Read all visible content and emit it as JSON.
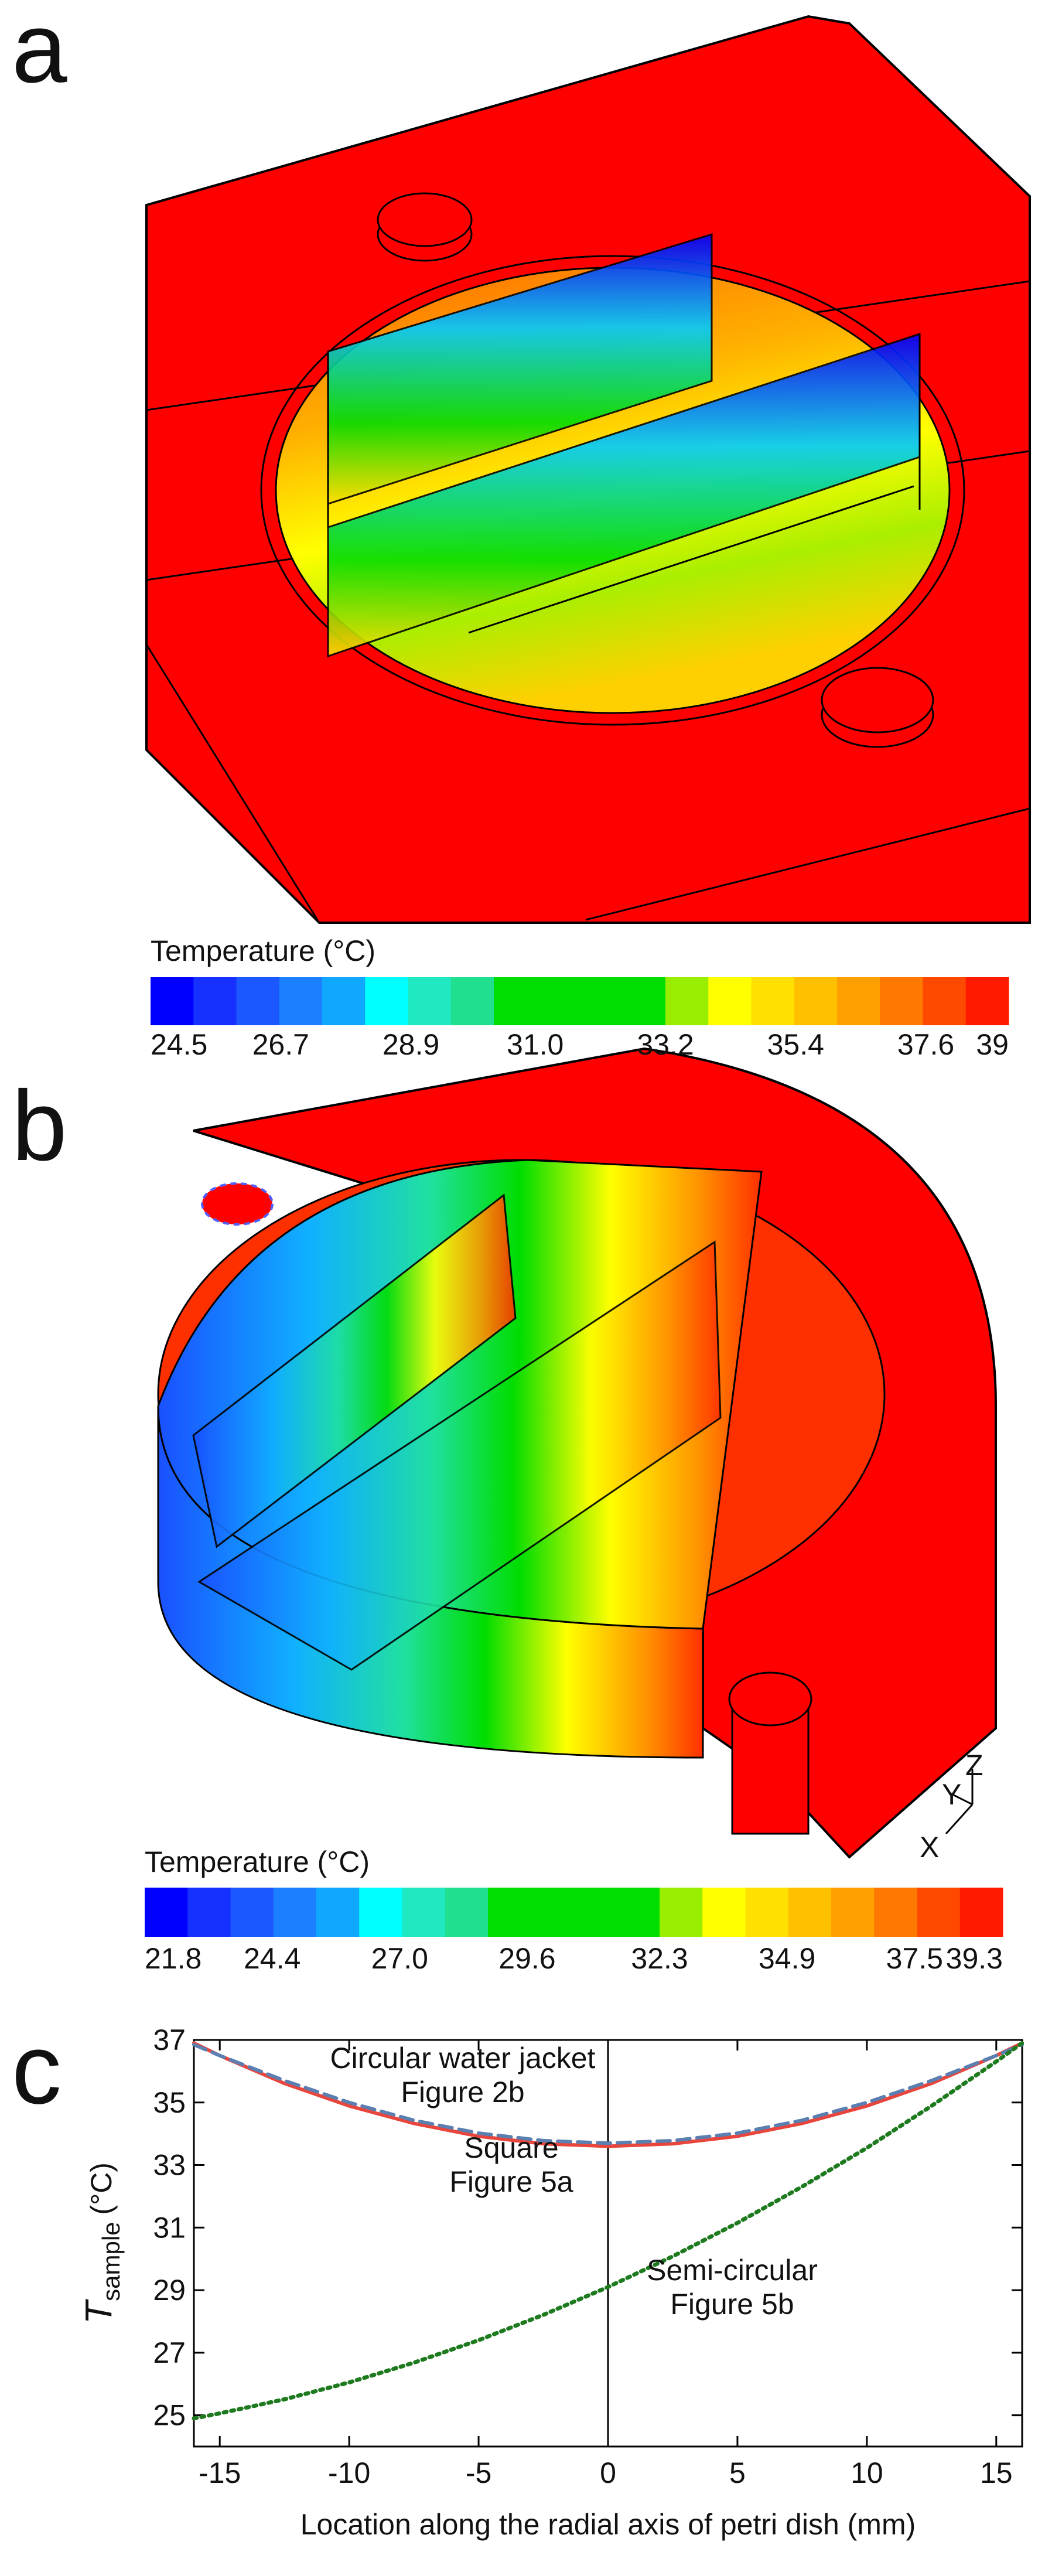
{
  "panel_labels": [
    "a",
    "b",
    "c"
  ],
  "axes_triad": [
    "Y",
    "Z",
    "X"
  ],
  "colorbars": [
    {
      "title": "Temperature (°C)",
      "clim": [
        24.5,
        39
      ],
      "ticks": [
        24.5,
        26.7,
        28.9,
        {
          "value": 31,
          "label": "31.0"
        },
        33.2,
        35.4,
        37.6,
        39
      ],
      "colors": [
        "#0000ff",
        "#1530ff",
        "#1c58ff",
        "#1a80ff",
        "#10a8ff",
        "#00ffff",
        "#20e8c0",
        "#20e090",
        "#00dd00",
        "#00dd00",
        "#00dd00",
        "#00dd00",
        "#99ee00",
        "#ffff00",
        "#ffe000",
        "#ffc000",
        "#ffa000",
        "#ff7800",
        "#ff4800",
        "#ff1a00"
      ]
    },
    {
      "title": "Temperature (°C)",
      "clim": [
        21.8,
        39.3
      ],
      "ticks": [
        21.8,
        24.4,
        {
          "value": 27,
          "label": "27.0"
        },
        29.6,
        32.3,
        34.9,
        37.5,
        39.3
      ],
      "colors": [
        "#0000ff",
        "#1530ff",
        "#1c58ff",
        "#1a80ff",
        "#10a8ff",
        "#00ffff",
        "#20e8c0",
        "#20e090",
        "#00dd00",
        "#00dd00",
        "#00dd00",
        "#00dd00",
        "#99ee00",
        "#ffff00",
        "#ffe000",
        "#ffc000",
        "#ffa000",
        "#ff7800",
        "#ff4800",
        "#ff1a00"
      ]
    }
  ],
  "chart_data": {
    "type": "line",
    "xlabel": "Location along the radial axis of petri dish (mm)",
    "ylabel": {
      "symbol": "T",
      "subscript": "sample",
      "unit": "(°C)"
    },
    "x": [
      -16,
      -15,
      -12.5,
      -10,
      -7.5,
      -5,
      -2.5,
      0,
      2.5,
      5,
      7.5,
      10,
      12.5,
      15,
      16
    ],
    "xlim": [
      -16,
      16
    ],
    "xticks": [
      -15,
      -10,
      -5,
      0,
      5,
      10,
      15
    ],
    "ylim": [
      24,
      37
    ],
    "yticks": [
      25,
      27,
      29,
      31,
      33,
      35,
      37
    ],
    "series": [
      {
        "color": "#e8463c",
        "dash": "solid",
        "values": [
          36.9,
          36.5,
          35.61,
          34.89,
          34.33,
          33.92,
          33.68,
          33.6,
          33.68,
          33.92,
          34.33,
          34.89,
          35.61,
          36.5,
          36.9
        ]
      },
      {
        "color": "#5a7fb0",
        "dash": "dashed",
        "values": [
          36.85,
          36.5,
          35.7,
          35.0,
          34.43,
          34.02,
          33.78,
          33.7,
          33.78,
          34.02,
          34.43,
          35.0,
          35.7,
          36.5,
          36.85
        ]
      },
      {
        "color": "#1e7a1e",
        "dash": "dotted",
        "values": [
          24.9,
          25.06,
          25.51,
          26.05,
          26.68,
          27.4,
          28.21,
          29.1,
          30.08,
          31.15,
          32.31,
          33.55,
          34.89,
          36.31,
          36.9
        ]
      }
    ],
    "annotations": [
      {
        "lines": [
          "Circular water jacket",
          "Figure 2b"
        ]
      },
      {
        "lines": [
          "Square",
          "Figure 5a"
        ]
      },
      {
        "lines": [
          "Semi-circular",
          "Figure 5b"
        ]
      }
    ]
  }
}
